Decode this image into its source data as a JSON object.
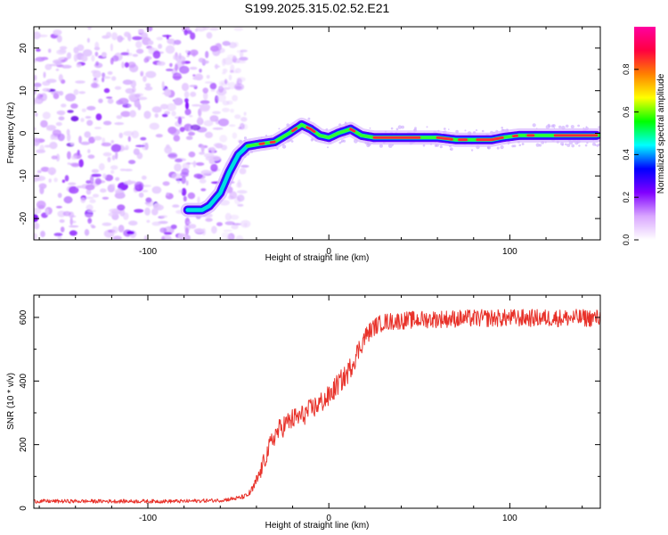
{
  "figure_title": "S199.2025.315.02.52.E21",
  "chart_data": [
    {
      "type": "heatmap",
      "title": "S199.2025.315.02.52.E21",
      "xlabel": "Height of straight line (km)",
      "ylabel": "Frequency (Hz)",
      "xlim": [
        -163,
        150
      ],
      "ylim": [
        -25,
        25
      ],
      "xticks": [
        -100,
        0,
        100
      ],
      "yticks": [
        -20,
        -10,
        0,
        10,
        20
      ],
      "xtick_labels": [
        "-100",
        "0",
        "100"
      ],
      "ytick_labels": [
        "-20",
        "-10",
        "0",
        "10",
        "20"
      ],
      "ridge": {
        "x": [
          -78,
          -70,
          -66,
          -60,
          -55,
          -50,
          -45,
          -38,
          -30,
          -22,
          -15,
          -10,
          -5,
          0,
          5,
          12,
          18,
          25,
          35,
          45,
          52,
          60,
          70,
          80,
          90,
          96,
          105,
          115,
          125,
          135,
          148
        ],
        "y": [
          -18,
          -18,
          -17,
          -14,
          -9,
          -5,
          -3,
          -2.5,
          -2,
          0,
          2,
          1,
          -0.5,
          -1,
          0,
          1,
          -0.5,
          -1,
          -1,
          -1,
          -1,
          -1,
          -1.5,
          -1.5,
          -1.5,
          -1,
          -0.5,
          -0.5,
          -0.5,
          -0.5,
          -0.5
        ]
      },
      "noise_region": {
        "x_range": [
          -163,
          -52
        ]
      },
      "colorbar": {
        "label": "Normalized spectral amplitude",
        "range": [
          0,
          1
        ],
        "ticks": [
          "0.0",
          "0.2",
          "0.4",
          "0.6",
          "0.8"
        ],
        "colors": [
          "#ffffff",
          "#d9a6ff",
          "#8000ff",
          "#0000ff",
          "#00ffff",
          "#00ff00",
          "#ffff00",
          "#ff8000",
          "#ff0040",
          "#ff00a0"
        ]
      }
    },
    {
      "type": "line",
      "xlabel": "Height of straight line (km)",
      "ylabel": "SNR (10 * v/v)",
      "xlim": [
        -163,
        150
      ],
      "ylim": [
        0,
        670
      ],
      "xticks": [
        -100,
        0,
        100
      ],
      "yticks": [
        0,
        200,
        400,
        600
      ],
      "xtick_labels": [
        "-100",
        "0",
        "100"
      ],
      "ytick_labels": [
        "0",
        "200",
        "400",
        "600"
      ],
      "line_color": "#e8322a",
      "series": [
        {
          "name": "SNR",
          "x": [
            -163,
            -140,
            -120,
            -100,
            -80,
            -60,
            -50,
            -45,
            -42,
            -40,
            -38,
            -35,
            -30,
            -25,
            -20,
            -15,
            -10,
            -5,
            0,
            5,
            10,
            15,
            20,
            25,
            30,
            40,
            50,
            60,
            80,
            100,
            120,
            140,
            150
          ],
          "y": [
            22,
            22,
            22,
            22,
            22,
            25,
            32,
            40,
            60,
            85,
            110,
            160,
            230,
            260,
            280,
            290,
            310,
            330,
            350,
            390,
            420,
            480,
            540,
            570,
            585,
            590,
            593,
            595,
            597,
            598,
            598,
            598,
            598
          ],
          "noise_amplitude": [
            6,
            6,
            6,
            6,
            6,
            6,
            7,
            8,
            15,
            20,
            25,
            30,
            35,
            35,
            35,
            35,
            35,
            35,
            35,
            35,
            35,
            35,
            30,
            28,
            28,
            28,
            28,
            28,
            28,
            28,
            28,
            28,
            28
          ]
        }
      ]
    }
  ]
}
